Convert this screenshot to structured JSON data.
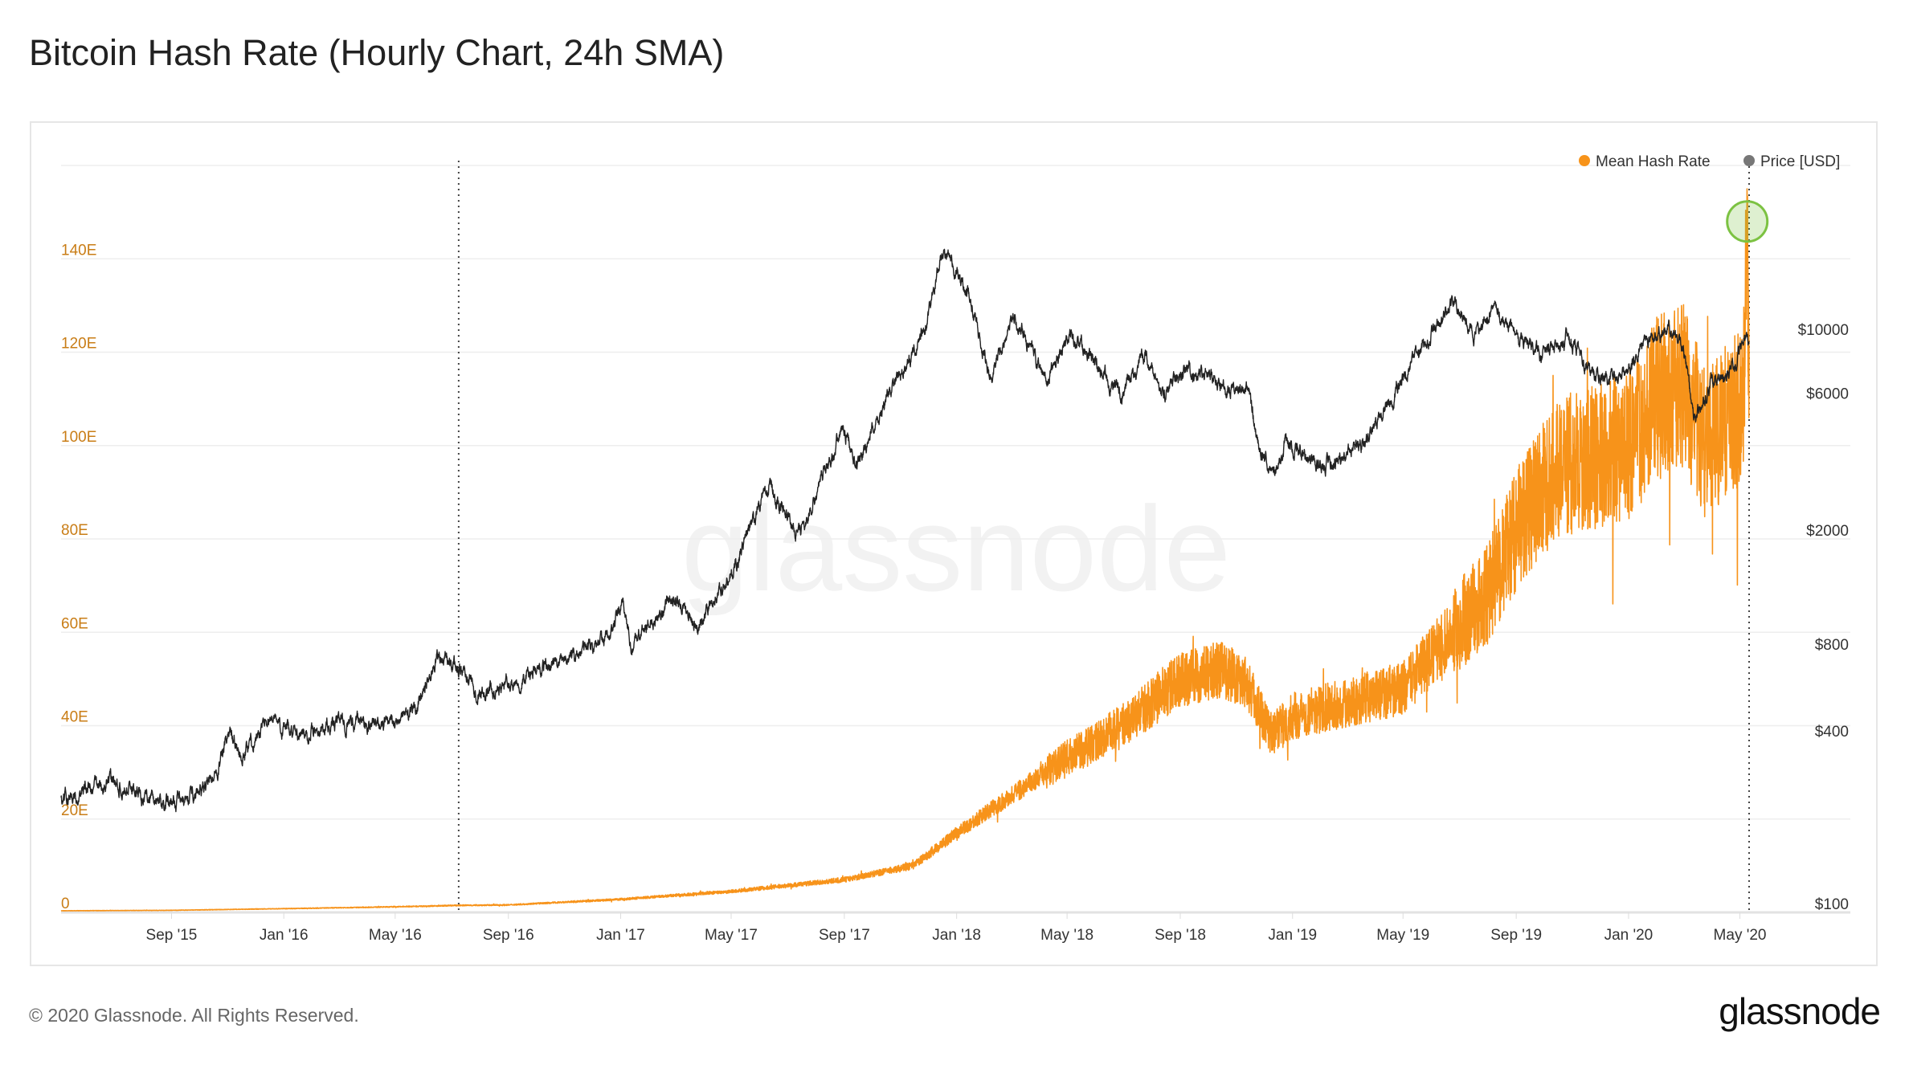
{
  "title": "Bitcoin Hash Rate (Hourly Chart, 24h SMA)",
  "footer": {
    "copyright": "© 2020 Glassnode. All Rights Reserved.",
    "logo": "glassnode"
  },
  "watermark": "glassnode",
  "colors": {
    "hash": "#f7931a",
    "price": "#222222",
    "left_axis": "#c97d16",
    "grid": "#eeeeee",
    "marker": "#7cc242"
  },
  "chart_data": {
    "type": "line",
    "title": "Bitcoin Hash Rate (Hourly Chart, 24h SMA)",
    "legend": {
      "placement": "top-right",
      "entries": [
        "Mean Hash Rate",
        "Price [USD]"
      ]
    },
    "x_range": [
      "2015-05-04",
      "2020-08-29"
    ],
    "x_ticks": [
      {
        "date": "2015-09-01",
        "label": "Sep '15"
      },
      {
        "date": "2016-01-01",
        "label": "Jan '16"
      },
      {
        "date": "2016-05-01",
        "label": "May '16"
      },
      {
        "date": "2016-09-01",
        "label": "Sep '16"
      },
      {
        "date": "2017-01-01",
        "label": "Jan '17"
      },
      {
        "date": "2017-05-01",
        "label": "May '17"
      },
      {
        "date": "2017-09-01",
        "label": "Sep '17"
      },
      {
        "date": "2018-01-01",
        "label": "Jan '18"
      },
      {
        "date": "2018-05-01",
        "label": "May '18"
      },
      {
        "date": "2018-09-01",
        "label": "Sep '18"
      },
      {
        "date": "2019-01-01",
        "label": "Jan '19"
      },
      {
        "date": "2019-05-01",
        "label": "May '19"
      },
      {
        "date": "2019-09-01",
        "label": "Sep '19"
      },
      {
        "date": "2020-01-01",
        "label": "Jan '20"
      },
      {
        "date": "2020-05-01",
        "label": "May '20"
      }
    ],
    "left_axis": {
      "unit": "E (EH/s)",
      "range": [
        0,
        160
      ],
      "ticks": [
        {
          "v": 0,
          "label": "0"
        },
        {
          "v": 20,
          "label": "20E"
        },
        {
          "v": 40,
          "label": "40E"
        },
        {
          "v": 60,
          "label": "60E"
        },
        {
          "v": 80,
          "label": "80E"
        },
        {
          "v": 100,
          "label": "100E"
        },
        {
          "v": 120,
          "label": "120E"
        },
        {
          "v": 140,
          "label": "140E"
        }
      ]
    },
    "right_axis": {
      "scale": "log",
      "ticks": [
        {
          "v": 100,
          "label": "$100"
        },
        {
          "v": 400,
          "label": "$400"
        },
        {
          "v": 800,
          "label": "$800"
        },
        {
          "v": 2000,
          "label": "$2000"
        },
        {
          "v": 6000,
          "label": "$6000"
        },
        {
          "v": 10000,
          "label": "$10000"
        }
      ]
    },
    "grid": true,
    "vertical_markers": [
      "2016-07-09",
      "2020-05-11"
    ],
    "highlight": {
      "date": "2020-05-09",
      "value": 148
    },
    "series": [
      {
        "name": "Mean Hash Rate",
        "axis": "left",
        "points": [
          [
            "2015-05-04",
            0.35
          ],
          [
            "2015-09-01",
            0.45
          ],
          [
            "2016-01-01",
            0.8
          ],
          [
            "2016-05-01",
            1.2
          ],
          [
            "2016-07-09",
            1.5
          ],
          [
            "2016-09-01",
            1.6
          ],
          [
            "2017-01-01",
            2.8
          ],
          [
            "2017-05-01",
            4.5
          ],
          [
            "2017-09-01",
            7
          ],
          [
            "2017-11-15",
            10
          ],
          [
            "2018-01-01",
            17
          ],
          [
            "2018-03-01",
            25
          ],
          [
            "2018-05-01",
            33
          ],
          [
            "2018-07-01",
            40
          ],
          [
            "2018-09-01",
            50
          ],
          [
            "2018-10-15",
            52
          ],
          [
            "2018-11-10",
            50
          ],
          [
            "2018-12-10",
            38
          ],
          [
            "2019-01-01",
            42
          ],
          [
            "2019-03-01",
            45
          ],
          [
            "2019-05-01",
            48
          ],
          [
            "2019-06-15",
            58
          ],
          [
            "2019-08-01",
            68
          ],
          [
            "2019-09-01",
            82
          ],
          [
            "2019-10-15",
            95
          ],
          [
            "2019-12-01",
            98
          ],
          [
            "2020-01-01",
            100
          ],
          [
            "2020-02-01",
            110
          ],
          [
            "2020-03-01",
            113
          ],
          [
            "2020-03-25",
            100
          ],
          [
            "2020-04-15",
            105
          ],
          [
            "2020-05-05",
            110
          ],
          [
            "2020-05-09",
            148
          ],
          [
            "2020-05-11",
            120
          ]
        ]
      },
      {
        "name": "Price [USD]",
        "axis": "right",
        "points": [
          [
            "2015-05-04",
            235
          ],
          [
            "2015-07-01",
            265
          ],
          [
            "2015-08-20",
            225
          ],
          [
            "2015-09-15",
            230
          ],
          [
            "2015-10-15",
            265
          ],
          [
            "2015-11-05",
            400
          ],
          [
            "2015-11-15",
            320
          ],
          [
            "2015-12-15",
            450
          ],
          [
            "2016-01-15",
            380
          ],
          [
            "2016-03-01",
            430
          ],
          [
            "2016-04-15",
            430
          ],
          [
            "2016-05-20",
            450
          ],
          [
            "2016-06-17",
            740
          ],
          [
            "2016-07-15",
            660
          ],
          [
            "2016-08-02",
            540
          ],
          [
            "2016-09-15",
            610
          ],
          [
            "2016-11-01",
            710
          ],
          [
            "2016-12-20",
            860
          ],
          [
            "2017-01-04",
            1130
          ],
          [
            "2017-01-12",
            790
          ],
          [
            "2017-02-25",
            1190
          ],
          [
            "2017-03-25",
            940
          ],
          [
            "2017-05-01",
            1400
          ],
          [
            "2017-06-10",
            2900
          ],
          [
            "2017-07-15",
            1900
          ],
          [
            "2017-08-31",
            4700
          ],
          [
            "2017-09-15",
            3300
          ],
          [
            "2017-10-20",
            6000
          ],
          [
            "2017-11-28",
            10000
          ],
          [
            "2017-12-17",
            19000
          ],
          [
            "2018-01-15",
            13000
          ],
          [
            "2018-02-06",
            6900
          ],
          [
            "2018-03-05",
            11400
          ],
          [
            "2018-04-06",
            6600
          ],
          [
            "2018-05-05",
            9800
          ],
          [
            "2018-06-29",
            5900
          ],
          [
            "2018-07-25",
            8200
          ],
          [
            "2018-08-14",
            6000
          ],
          [
            "2018-09-05",
            7300
          ],
          [
            "2018-10-20",
            6400
          ],
          [
            "2018-11-14",
            6300
          ],
          [
            "2018-11-25",
            3900
          ],
          [
            "2018-12-15",
            3200
          ],
          [
            "2018-12-24",
            4100
          ],
          [
            "2019-02-07",
            3400
          ],
          [
            "2019-03-15",
            3900
          ],
          [
            "2019-04-03",
            4900
          ],
          [
            "2019-05-15",
            8000
          ],
          [
            "2019-06-26",
            12800
          ],
          [
            "2019-07-17",
            9500
          ],
          [
            "2019-08-06",
            11800
          ],
          [
            "2019-09-01",
            9600
          ],
          [
            "2019-09-26",
            8100
          ],
          [
            "2019-10-26",
            9500
          ],
          [
            "2019-11-25",
            7000
          ],
          [
            "2019-12-18",
            6600
          ],
          [
            "2020-01-15",
            8800
          ],
          [
            "2020-02-13",
            10300
          ],
          [
            "2020-03-01",
            8600
          ],
          [
            "2020-03-13",
            4900
          ],
          [
            "2020-04-01",
            6600
          ],
          [
            "2020-04-25",
            7500
          ],
          [
            "2020-05-08",
            9900
          ],
          [
            "2020-05-11",
            8600
          ]
        ]
      }
    ]
  }
}
